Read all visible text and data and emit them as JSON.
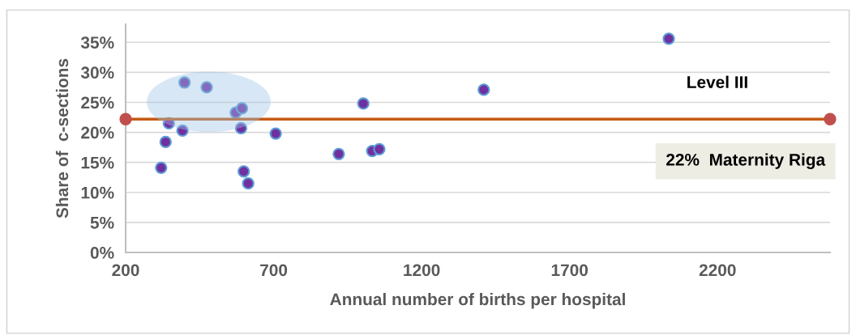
{
  "chart_data": {
    "type": "scatter",
    "xlabel": "Annual number of births per hospital",
    "ylabel": "Share of  c-sections",
    "x": [
      399,
      474,
      572,
      593,
      346,
      392,
      590,
      707,
      335,
      320,
      599,
      614,
      920,
      1033,
      1057,
      1003,
      1410,
      2035
    ],
    "series": [
      {
        "marker": "circle",
        "color": "#7030a0",
        "values": [
          28.3,
          27.5,
          23.3,
          24.0,
          21.5,
          20.3,
          20.7,
          19.8,
          18.4,
          14.1,
          13.5,
          11.5,
          16.4,
          16.9,
          17.2,
          24.8,
          27.1,
          35.6
        ]
      },
      {
        "type": "line",
        "color": "#c55a11",
        "x": [
          200,
          2580
        ],
        "values": [
          22.2,
          22.2
        ],
        "marker": "circle"
      }
    ],
    "xlim": [
      200,
      2580
    ],
    "xticks": [
      200,
      700,
      1200,
      1700,
      2200
    ],
    "ylim": [
      0,
      38
    ],
    "yticks": [
      {
        "value": 0,
        "label": "0%"
      },
      {
        "value": 5,
        "label": "5%"
      },
      {
        "value": 10,
        "label": "10%"
      },
      {
        "value": 15,
        "label": "15%"
      },
      {
        "value": 20,
        "label": "20%"
      },
      {
        "value": 25,
        "label": "25%"
      },
      {
        "value": 30,
        "label": "30%"
      },
      {
        "value": 35,
        "label": "35%"
      }
    ],
    "grid": "y",
    "annotations": [
      "Level III",
      "22%  Maternity Riga"
    ]
  }
}
